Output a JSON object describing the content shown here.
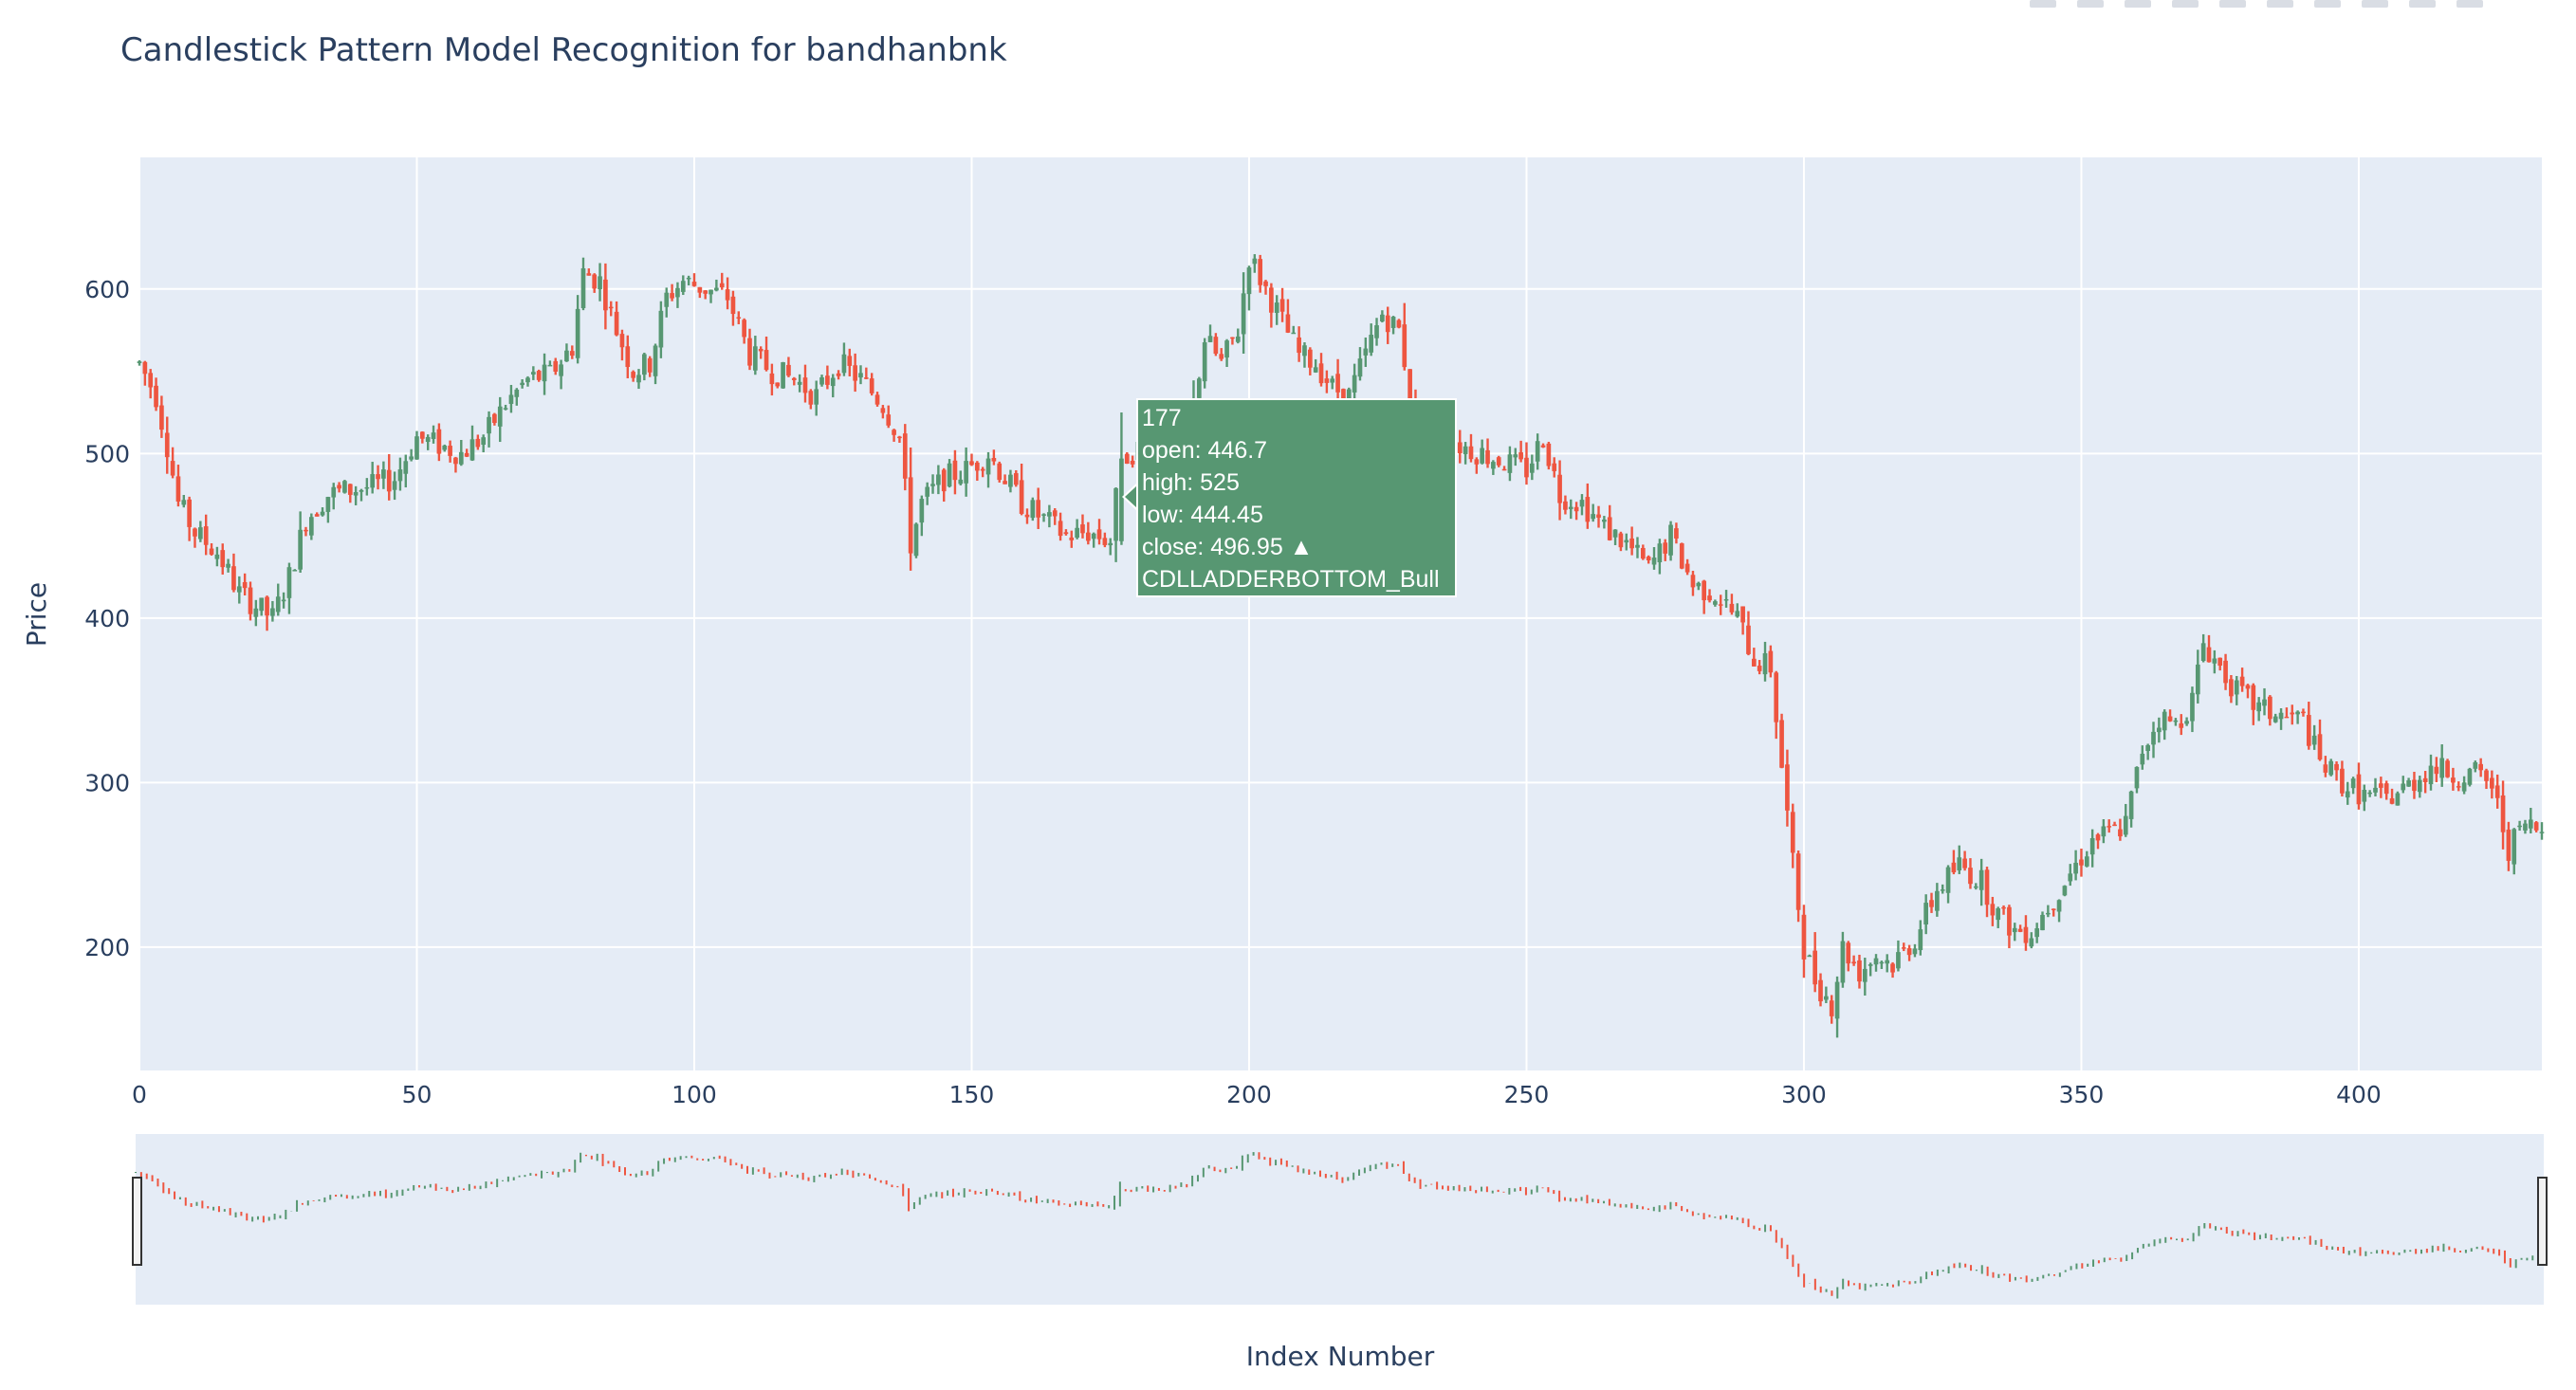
{
  "chart_data": {
    "type": "candlestick",
    "title": "Candlestick Pattern Model Recognition for bandhanbnk",
    "xlabel": "Index Number",
    "ylabel": "Price",
    "xlim": [
      0,
      433
    ],
    "ylim": [
      125,
      680
    ],
    "x_ticks": [
      0,
      50,
      100,
      150,
      200,
      250,
      300,
      350,
      400
    ],
    "y_ticks": [
      200,
      300,
      400,
      500,
      600
    ],
    "increasing_color": "#579772",
    "decreasing_color": "#ee5540",
    "plot_bg": "#e5ecf6",
    "grid": true,
    "rangeslider": true,
    "close_path": [
      [
        0,
        555
      ],
      [
        3,
        535
      ],
      [
        5,
        505
      ],
      [
        7,
        470
      ],
      [
        10,
        452
      ],
      [
        14,
        440
      ],
      [
        18,
        415
      ],
      [
        22,
        405
      ],
      [
        24,
        400
      ],
      [
        27,
        425
      ],
      [
        30,
        460
      ],
      [
        34,
        475
      ],
      [
        38,
        478
      ],
      [
        42,
        480
      ],
      [
        46,
        485
      ],
      [
        50,
        510
      ],
      [
        54,
        505
      ],
      [
        58,
        500
      ],
      [
        62,
        510
      ],
      [
        66,
        530
      ],
      [
        70,
        545
      ],
      [
        74,
        548
      ],
      [
        78,
        565
      ],
      [
        80,
        610
      ],
      [
        83,
        605
      ],
      [
        86,
        575
      ],
      [
        89,
        550
      ],
      [
        92,
        555
      ],
      [
        95,
        595
      ],
      [
        98,
        605
      ],
      [
        102,
        600
      ],
      [
        106,
        595
      ],
      [
        110,
        560
      ],
      [
        114,
        550
      ],
      [
        118,
        545
      ],
      [
        122,
        535
      ],
      [
        126,
        555
      ],
      [
        130,
        545
      ],
      [
        134,
        530
      ],
      [
        137,
        510
      ],
      [
        139,
        445
      ],
      [
        141,
        470
      ],
      [
        145,
        485
      ],
      [
        149,
        490
      ],
      [
        153,
        500
      ],
      [
        156,
        485
      ],
      [
        159,
        470
      ],
      [
        163,
        460
      ],
      [
        167,
        450
      ],
      [
        171,
        452
      ],
      [
        175,
        447
      ],
      [
        177,
        497
      ],
      [
        181,
        505
      ],
      [
        185,
        500
      ],
      [
        189,
        510
      ],
      [
        192,
        570
      ],
      [
        195,
        555
      ],
      [
        198,
        575
      ],
      [
        200,
        620
      ],
      [
        203,
        600
      ],
      [
        206,
        580
      ],
      [
        209,
        560
      ],
      [
        212,
        555
      ],
      [
        215,
        540
      ],
      [
        218,
        535
      ],
      [
        221,
        560
      ],
      [
        224,
        585
      ],
      [
        227,
        575
      ],
      [
        230,
        520
      ],
      [
        234,
        510
      ],
      [
        238,
        505
      ],
      [
        242,
        500
      ],
      [
        246,
        495
      ],
      [
        250,
        490
      ],
      [
        253,
        510
      ],
      [
        256,
        475
      ],
      [
        260,
        470
      ],
      [
        264,
        455
      ],
      [
        268,
        445
      ],
      [
        272,
        430
      ],
      [
        276,
        450
      ],
      [
        280,
        420
      ],
      [
        284,
        415
      ],
      [
        288,
        400
      ],
      [
        291,
        375
      ],
      [
        294,
        370
      ],
      [
        296,
        310
      ],
      [
        298,
        250
      ],
      [
        300,
        200
      ],
      [
        302,
        180
      ],
      [
        305,
        165
      ],
      [
        307,
        200
      ],
      [
        310,
        185
      ],
      [
        313,
        195
      ],
      [
        316,
        190
      ],
      [
        320,
        205
      ],
      [
        324,
        235
      ],
      [
        328,
        250
      ],
      [
        332,
        240
      ],
      [
        335,
        220
      ],
      [
        338,
        210
      ],
      [
        341,
        210
      ],
      [
        345,
        230
      ],
      [
        349,
        250
      ],
      [
        352,
        265
      ],
      [
        356,
        270
      ],
      [
        358,
        275
      ],
      [
        361,
        320
      ],
      [
        364,
        340
      ],
      [
        367,
        335
      ],
      [
        370,
        350
      ],
      [
        372,
        385
      ],
      [
        375,
        370
      ],
      [
        378,
        355
      ],
      [
        382,
        345
      ],
      [
        386,
        340
      ],
      [
        390,
        338
      ],
      [
        393,
        312
      ],
      [
        397,
        300
      ],
      [
        401,
        292
      ],
      [
        405,
        290
      ],
      [
        409,
        298
      ],
      [
        413,
        310
      ],
      [
        417,
        305
      ],
      [
        421,
        305
      ],
      [
        424,
        298
      ],
      [
        427,
        260
      ],
      [
        430,
        275
      ],
      [
        433,
        270
      ]
    ],
    "highlight": {
      "index": 177,
      "open": 446.7,
      "high": 525,
      "low": 444.45,
      "close": 496.95,
      "pattern": "CDLLADDERBOTTOM_Bull"
    },
    "tooltip_lines": [
      "177",
      "open: 446.7",
      "high: 525",
      "low: 444.45",
      "close: 496.95  ▲",
      "CDLLADDERBOTTOM_Bull"
    ]
  }
}
